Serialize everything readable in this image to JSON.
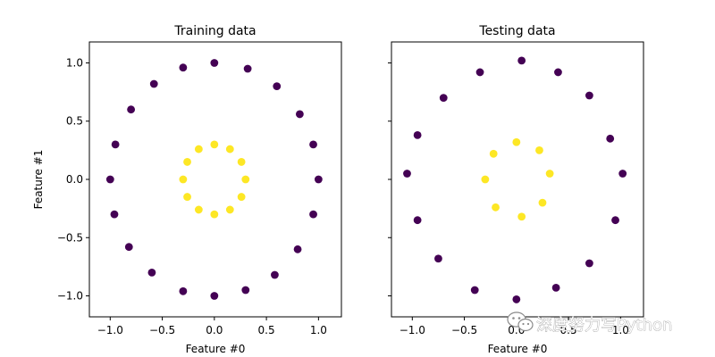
{
  "colors": {
    "class_0": "#440154",
    "class_1": "#fde725",
    "axis": "#000000"
  },
  "watermark": {
    "text": "深度努力写Python",
    "icon": "wechat-logo-icon"
  },
  "chart_data": [
    {
      "type": "scatter",
      "title": "Training data",
      "xlabel": "Feature #0",
      "ylabel": "Feature #1",
      "xlim": [
        -1.2,
        1.22
      ],
      "ylim": [
        -1.18,
        1.18
      ],
      "xticks": [
        -1.0,
        -0.5,
        0.0,
        0.5,
        1.0
      ],
      "xtick_labels": [
        "−1.0",
        "−0.5",
        "0.0",
        "0.5",
        "1.0"
      ],
      "yticks": [
        -1.0,
        -0.5,
        0.0,
        0.5,
        1.0
      ],
      "ytick_labels": [
        "−1.0",
        "−0.5",
        "0.0",
        "0.5",
        "1.0"
      ],
      "grid": false,
      "series": [
        {
          "class": 0,
          "color": "#440154",
          "points": [
            [
              1.0,
              0.0
            ],
            [
              0.95,
              0.3
            ],
            [
              0.82,
              0.56
            ],
            [
              0.6,
              0.8
            ],
            [
              0.32,
              0.95
            ],
            [
              0.0,
              1.0
            ],
            [
              -0.3,
              0.96
            ],
            [
              -0.58,
              0.82
            ],
            [
              -0.8,
              0.6
            ],
            [
              -0.95,
              0.3
            ],
            [
              -1.0,
              0.0
            ],
            [
              -0.96,
              -0.3
            ],
            [
              -0.82,
              -0.58
            ],
            [
              -0.6,
              -0.8
            ],
            [
              -0.3,
              -0.96
            ],
            [
              0.0,
              -1.0
            ],
            [
              0.3,
              -0.95
            ],
            [
              0.58,
              -0.82
            ],
            [
              0.8,
              -0.6
            ],
            [
              0.95,
              -0.3
            ]
          ]
        },
        {
          "class": 1,
          "color": "#fde725",
          "points": [
            [
              0.3,
              0.0
            ],
            [
              0.26,
              0.15
            ],
            [
              0.15,
              0.26
            ],
            [
              0.0,
              0.3
            ],
            [
              -0.15,
              0.26
            ],
            [
              -0.26,
              0.15
            ],
            [
              -0.3,
              0.0
            ],
            [
              -0.26,
              -0.15
            ],
            [
              -0.15,
              -0.26
            ],
            [
              0.0,
              -0.3
            ],
            [
              0.15,
              -0.26
            ],
            [
              0.26,
              -0.15
            ]
          ]
        }
      ]
    },
    {
      "type": "scatter",
      "title": "Testing data",
      "xlabel": "Feature #0",
      "ylabel": "",
      "xlim": [
        -1.2,
        1.22
      ],
      "ylim": [
        -1.18,
        1.18
      ],
      "xticks": [
        -1.0,
        -0.5,
        0.0,
        0.5,
        1.0
      ],
      "xtick_labels": [
        "−1.0",
        "−0.5",
        "0.0",
        "0.5",
        "1.0"
      ],
      "yticks": [
        -1.0,
        -0.5,
        0.0,
        0.5,
        1.0
      ],
      "ytick_labels": [],
      "grid": false,
      "series": [
        {
          "class": 0,
          "color": "#440154",
          "points": [
            [
              1.02,
              0.05
            ],
            [
              0.9,
              0.35
            ],
            [
              0.7,
              0.72
            ],
            [
              0.4,
              0.92
            ],
            [
              0.05,
              1.02
            ],
            [
              -0.35,
              0.92
            ],
            [
              -0.7,
              0.7
            ],
            [
              -0.95,
              0.38
            ],
            [
              -1.05,
              0.05
            ],
            [
              -0.95,
              -0.35
            ],
            [
              -0.75,
              -0.68
            ],
            [
              -0.4,
              -0.95
            ],
            [
              0.0,
              -1.03
            ],
            [
              0.38,
              -0.93
            ],
            [
              0.7,
              -0.72
            ],
            [
              0.95,
              -0.35
            ]
          ]
        },
        {
          "class": 1,
          "color": "#fde725",
          "points": [
            [
              0.32,
              0.05
            ],
            [
              0.22,
              0.25
            ],
            [
              0.0,
              0.32
            ],
            [
              -0.22,
              0.22
            ],
            [
              -0.3,
              0.0
            ],
            [
              -0.2,
              -0.24
            ],
            [
              0.05,
              -0.32
            ],
            [
              0.25,
              -0.2
            ]
          ]
        }
      ]
    }
  ]
}
